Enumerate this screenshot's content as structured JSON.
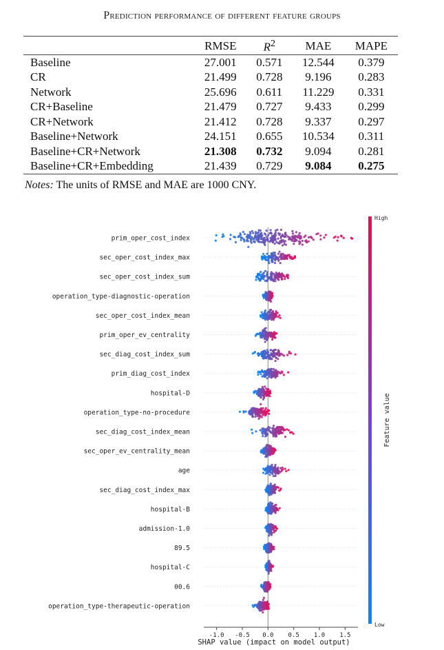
{
  "table": {
    "title": "Prediction performance of different feature groups",
    "columns": [
      "",
      "RMSE",
      "R2",
      "MAE",
      "MAPE"
    ],
    "r2_label": {
      "base": "R",
      "sup": "2"
    },
    "rows": [
      {
        "name": "Baseline",
        "RMSE": "27.001",
        "R2": "0.571",
        "MAE": "12.544",
        "MAPE": "0.379",
        "bold": []
      },
      {
        "name": "CR",
        "RMSE": "21.499",
        "R2": "0.728",
        "MAE": "9.196",
        "MAPE": "0.283",
        "bold": []
      },
      {
        "name": "Network",
        "RMSE": "25.696",
        "R2": "0.611",
        "MAE": "11.229",
        "MAPE": "0.331",
        "bold": []
      },
      {
        "name": "CR+Baseline",
        "RMSE": "21.479",
        "R2": "0.727",
        "MAE": "9.433",
        "MAPE": "0.299",
        "bold": []
      },
      {
        "name": "CR+Network",
        "RMSE": "21.412",
        "R2": "0.728",
        "MAE": "9.337",
        "MAPE": "0.297",
        "bold": []
      },
      {
        "name": "Baseline+Network",
        "RMSE": "24.151",
        "R2": "0.655",
        "MAE": "10.534",
        "MAPE": "0.311",
        "bold": []
      },
      {
        "name": "Baseline+CR+Network",
        "RMSE": "21.308",
        "R2": "0.732",
        "MAE": "9.094",
        "MAPE": "0.281",
        "bold": [
          "RMSE",
          "R2"
        ]
      },
      {
        "name": "Baseline+CR+Embedding",
        "RMSE": "21.439",
        "R2": "0.729",
        "MAE": "9.084",
        "MAPE": "0.275",
        "bold": [
          "MAE",
          "MAPE"
        ]
      }
    ]
  },
  "notes": {
    "label": "Notes:",
    "text": "The units of RMSE and MAE are 1000 CNY."
  },
  "chart_data": {
    "type": "scatter",
    "subtype": "shap-beeswarm",
    "xlabel": "SHAP value (impact on model output)",
    "xlim": [
      -1.25,
      1.75
    ],
    "xticks": [
      -1.0,
      -0.5,
      0.0,
      0.5,
      1.0,
      1.5
    ],
    "xtick_labels": [
      "-1.0",
      "-0.5",
      "0.0",
      "0.5",
      "1.0",
      "1.5"
    ],
    "colorbar": {
      "label": "Feature value",
      "high": "High",
      "low": "Low",
      "high_color": "#ff0052",
      "low_color": "#008bfb"
    },
    "features": [
      {
        "name": "prim_oper_cost_index",
        "neg": -1.1,
        "pos": 1.65,
        "core": [
          -0.45,
          0.65
        ]
      },
      {
        "name": "sec_oper_cost_index_max",
        "neg": -0.12,
        "pos": 0.55,
        "core": [
          -0.1,
          0.4
        ]
      },
      {
        "name": "sec_oper_cost_index_sum",
        "neg": -0.25,
        "pos": 0.5,
        "core": [
          -0.2,
          0.3
        ]
      },
      {
        "name": "operation_type-diagnostic-operation",
        "neg": -0.1,
        "pos": 0.1,
        "core": [
          -0.05,
          0.08
        ]
      },
      {
        "name": "sec_oper_cost_index_mean",
        "neg": -0.15,
        "pos": 0.25,
        "core": [
          -0.1,
          0.15
        ]
      },
      {
        "name": "prim_oper_ev_centrality",
        "neg": -0.25,
        "pos": 0.2,
        "core": [
          -0.15,
          0.1
        ]
      },
      {
        "name": "sec_diag_cost_index_sum",
        "neg": -0.3,
        "pos": 0.55,
        "core": [
          -0.15,
          0.25
        ]
      },
      {
        "name": "prim_diag_cost_index",
        "neg": -0.2,
        "pos": 0.4,
        "core": [
          -0.1,
          0.2
        ]
      },
      {
        "name": "hospital-D",
        "neg": -0.28,
        "pos": 0.05,
        "core": [
          -0.2,
          0.03
        ]
      },
      {
        "name": "operation_type-no-procedure",
        "neg": -0.55,
        "pos": 0.02,
        "core": [
          -0.35,
          0.01
        ]
      },
      {
        "name": "sec_diag_cost_index_mean",
        "neg": -0.35,
        "pos": 0.5,
        "core": [
          -0.1,
          0.3
        ]
      },
      {
        "name": "sec_oper_ev_centrality_mean",
        "neg": -0.15,
        "pos": 0.15,
        "core": [
          -0.08,
          0.08
        ]
      },
      {
        "name": "age",
        "neg": -0.1,
        "pos": 0.4,
        "core": [
          -0.05,
          0.2
        ]
      },
      {
        "name": "sec_diag_cost_index_max",
        "neg": -0.05,
        "pos": 0.25,
        "core": [
          -0.03,
          0.15
        ]
      },
      {
        "name": "hospital-B",
        "neg": -0.05,
        "pos": 0.25,
        "core": [
          -0.03,
          0.15
        ]
      },
      {
        "name": "admission-1.0",
        "neg": -0.05,
        "pos": 0.18,
        "core": [
          -0.03,
          0.1
        ]
      },
      {
        "name": "89.5",
        "neg": -0.08,
        "pos": 0.15,
        "core": [
          -0.05,
          0.08
        ]
      },
      {
        "name": "hospital-C",
        "neg": -0.05,
        "pos": 0.1,
        "core": [
          -0.03,
          0.06
        ]
      },
      {
        "name": "00.6",
        "neg": -0.15,
        "pos": 0.05,
        "core": [
          -0.08,
          0.03
        ]
      },
      {
        "name": "operation_type-therapeutic-operation",
        "neg": -0.3,
        "pos": 0.02,
        "core": [
          -0.2,
          0.01
        ]
      }
    ]
  }
}
